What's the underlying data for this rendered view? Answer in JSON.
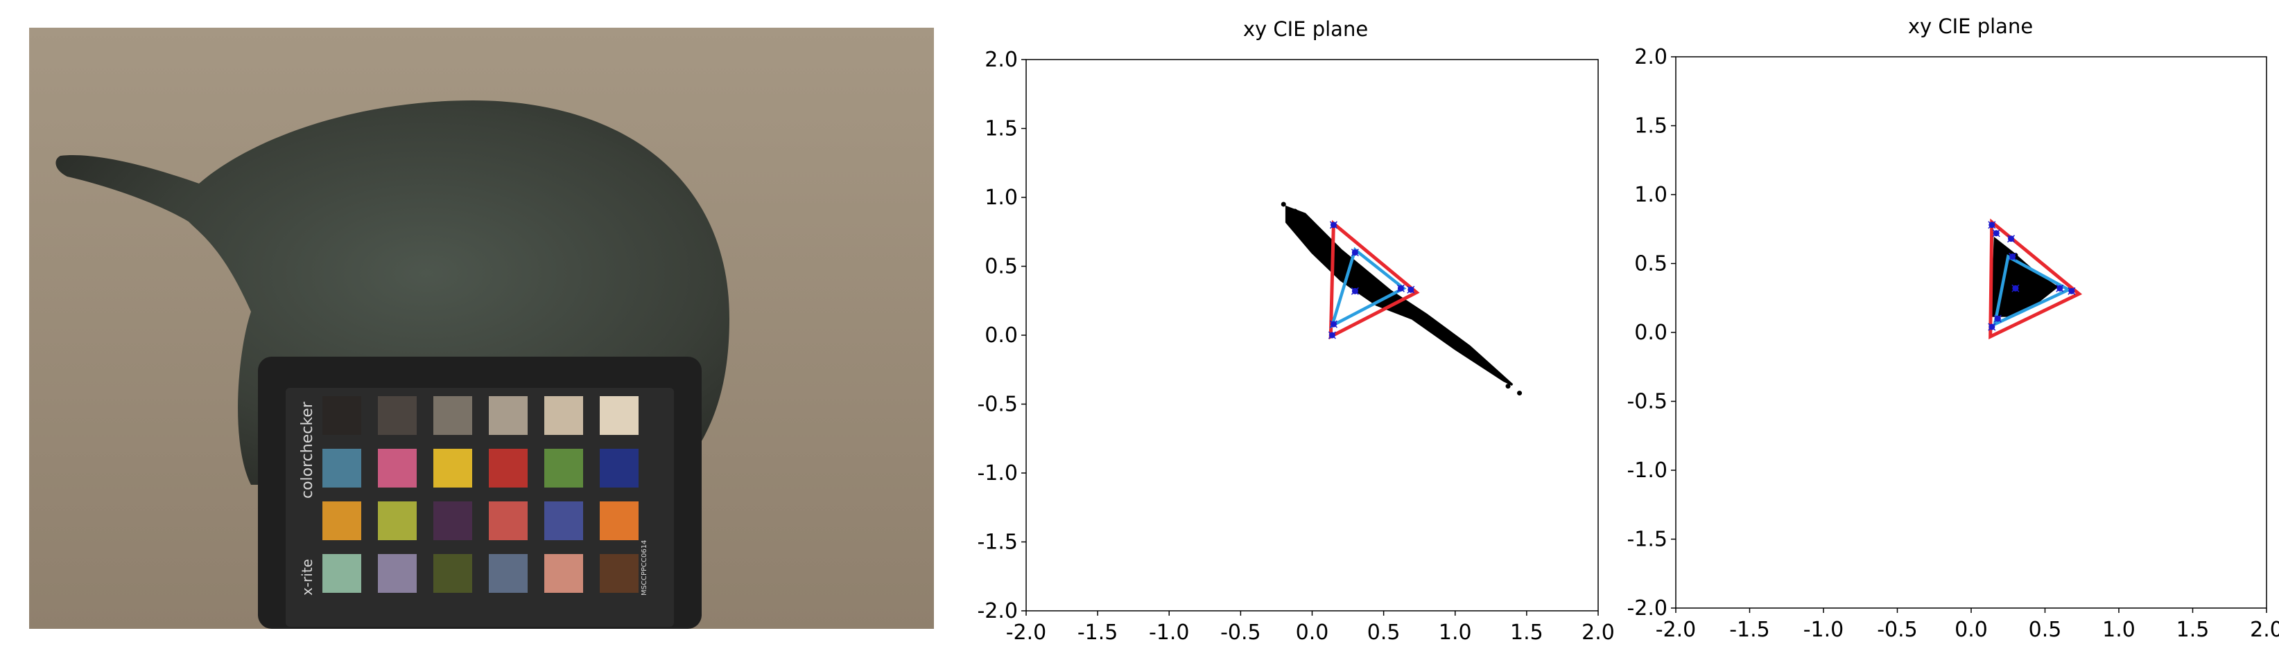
{
  "photo": {
    "description_icon": "photo-icon",
    "checker": {
      "brand_text": "colorchecker",
      "maker_text": "x-rite",
      "serial_text": "MSCCPPCC0614",
      "patches": [
        [
          "#2a2624",
          "#4b443f",
          "#7a7267",
          "#a89c8c",
          "#c9b9a2",
          "#e0d2bb"
        ],
        [
          "#4a7d96",
          "#c95a80",
          "#dcb42a",
          "#b7332d",
          "#5e8a3d",
          "#243282"
        ],
        [
          "#d59128",
          "#a6ab3a",
          "#482c4a",
          "#c5534c",
          "#454f94",
          "#e0762b"
        ],
        [
          "#8ab39a",
          "#897f9d",
          "#4c5527",
          "#5d6c85",
          "#ce8a78",
          "#5e3a24"
        ]
      ]
    }
  },
  "chart_data": [
    {
      "type": "scatter",
      "title": "xy CIE plane",
      "xlim": [
        -2.0,
        2.0
      ],
      "ylim": [
        -2.0,
        2.0
      ],
      "xticks": [
        "-2.0",
        "-1.5",
        "-1.0",
        "-0.5",
        "0.0",
        "0.5",
        "1.0",
        "1.5",
        "2.0"
      ],
      "yticks": [
        "-2.0",
        "-1.5",
        "-1.0",
        "-0.5",
        "0.0",
        "0.5",
        "1.0",
        "1.5",
        "2.0"
      ],
      "colors": {
        "points": "#000000",
        "red_triangle": "#e8282e",
        "blue_triangle": "#2a9ee0",
        "markers": "#1a1acc"
      },
      "point_cloud": {
        "polygon": [
          [
            -0.18,
            0.93
          ],
          [
            -0.05,
            0.88
          ],
          [
            0.2,
            0.62
          ],
          [
            0.55,
            0.32
          ],
          [
            0.8,
            0.15
          ],
          [
            1.1,
            -0.08
          ],
          [
            1.4,
            -0.36
          ],
          [
            1.34,
            -0.33
          ],
          [
            1.0,
            -0.1
          ],
          [
            0.7,
            0.12
          ],
          [
            0.45,
            0.22
          ],
          [
            0.2,
            0.4
          ],
          [
            0.0,
            0.6
          ],
          [
            -0.18,
            0.82
          ]
        ],
        "outliers": [
          [
            1.45,
            -0.42
          ],
          [
            -0.2,
            0.95
          ],
          [
            1.37,
            -0.37
          ],
          [
            -0.12,
            0.9
          ]
        ]
      },
      "red_triangle": [
        [
          0.15,
          0.81
        ],
        [
          0.73,
          0.31
        ],
        [
          0.13,
          -0.01
        ]
      ],
      "blue_triangle": [
        [
          0.3,
          0.62
        ],
        [
          0.64,
          0.34
        ],
        [
          0.14,
          0.07
        ]
      ],
      "markers": [
        [
          0.15,
          0.8
        ],
        [
          0.69,
          0.33
        ],
        [
          0.14,
          0.0
        ],
        [
          0.3,
          0.6
        ],
        [
          0.62,
          0.34
        ],
        [
          0.15,
          0.08
        ],
        [
          0.3,
          0.32
        ]
      ]
    },
    {
      "type": "scatter",
      "title": "xy CIE plane",
      "xlim": [
        -2.0,
        2.0
      ],
      "ylim": [
        -2.0,
        2.0
      ],
      "xticks": [
        "-2.0",
        "-1.5",
        "-1.0",
        "-0.5",
        "0.0",
        "0.5",
        "1.0",
        "1.5",
        "2.0"
      ],
      "yticks": [
        "-2.0",
        "-1.5",
        "-1.0",
        "-0.5",
        "0.0",
        "0.5",
        "1.0",
        "1.5",
        "2.0"
      ],
      "colors": {
        "points": "#000000",
        "red_triangle": "#e8282e",
        "blue_triangle": "#2a9ee0",
        "markers": "#1a1acc"
      },
      "point_cloud": {
        "polygon": [
          [
            0.16,
            0.68
          ],
          [
            0.28,
            0.58
          ],
          [
            0.45,
            0.42
          ],
          [
            0.58,
            0.33
          ],
          [
            0.45,
            0.22
          ],
          [
            0.25,
            0.12
          ],
          [
            0.13,
            0.12
          ],
          [
            0.15,
            0.4
          ]
        ],
        "outliers": [
          [
            0.3,
            0.56
          ],
          [
            0.21,
            0.6
          ]
        ]
      },
      "red_triangle": [
        [
          0.14,
          0.8
        ],
        [
          0.73,
          0.28
        ],
        [
          0.13,
          -0.03
        ]
      ],
      "blue_triangle": [
        [
          0.25,
          0.55
        ],
        [
          0.66,
          0.31
        ],
        [
          0.16,
          0.06
        ]
      ],
      "markers": [
        [
          0.14,
          0.78
        ],
        [
          0.17,
          0.72
        ],
        [
          0.27,
          0.68
        ],
        [
          0.68,
          0.3
        ],
        [
          0.6,
          0.32
        ],
        [
          0.14,
          0.04
        ],
        [
          0.18,
          0.1
        ],
        [
          0.3,
          0.32
        ],
        [
          0.28,
          0.55
        ]
      ]
    }
  ]
}
